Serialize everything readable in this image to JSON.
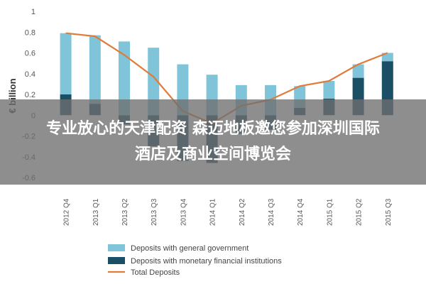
{
  "chart_data": {
    "type": "bar",
    "categories": [
      "2012 Q4",
      "2013 Q1",
      "2013 Q2",
      "2013 Q3",
      "2013 Q4",
      "2014 Q1",
      "2014 Q2",
      "2014 Q3",
      "2014 Q4",
      "2015 Q1",
      "2015 Q2",
      "2015 Q3"
    ],
    "series": [
      {
        "name": "Deposits with general government",
        "kind": "bar",
        "color": "#7fc4d8",
        "values": [
          0.59,
          0.66,
          0.71,
          0.65,
          0.49,
          0.39,
          0.29,
          0.29,
          0.21,
          0.17,
          0.13,
          0.08
        ]
      },
      {
        "name": "Deposits with monetary financial institutions",
        "kind": "bar",
        "color": "#1a4f66",
        "values": [
          0.2,
          0.11,
          -0.09,
          -0.3,
          -0.44,
          -0.46,
          -0.18,
          -0.14,
          0.07,
          0.16,
          0.36,
          0.52
        ]
      },
      {
        "name": "Total Deposits",
        "kind": "line",
        "color": "#e07b39",
        "values": [
          0.79,
          0.76,
          0.58,
          0.37,
          0.04,
          -0.08,
          0.09,
          0.15,
          0.28,
          0.33,
          0.49,
          0.6
        ]
      }
    ],
    "ylabel": "€ billion",
    "yticks": [
      "1",
      "0.8",
      "0.6",
      "0.4",
      "0.2",
      "0",
      "-0.2",
      "-0.4",
      "-0.6"
    ],
    "ylim": [
      -0.6,
      1.0
    ],
    "grid": false,
    "legend": "bottom-left"
  },
  "overlay": {
    "line1": "专业放心的天津配资 森迈地板邀您参加深圳国际",
    "line2": "酒店及商业空间博览会"
  }
}
